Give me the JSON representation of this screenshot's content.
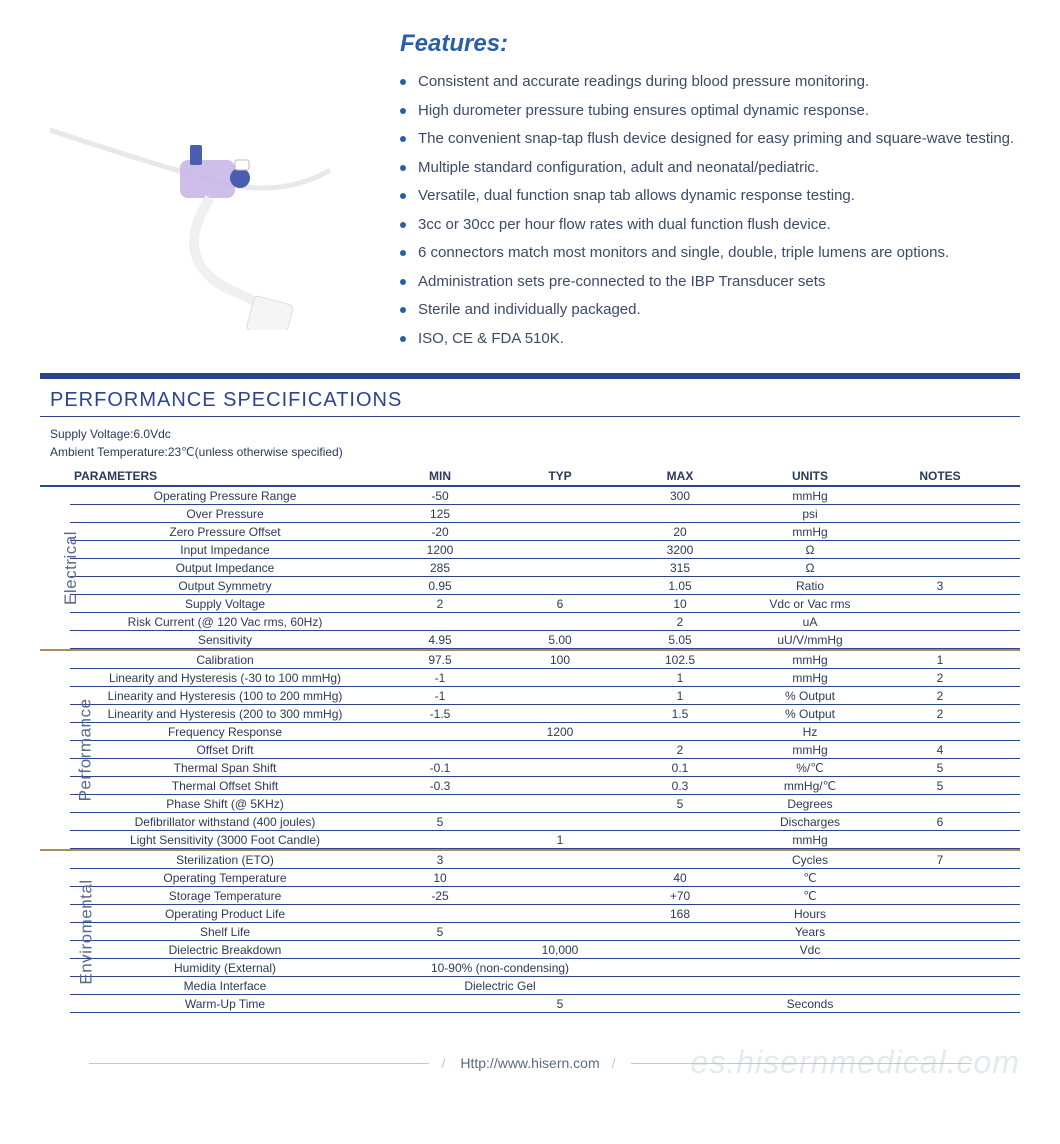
{
  "colors": {
    "accent": "#2a5ea8",
    "rule": "#2a448f",
    "section_divider": "#a98c5f",
    "text": "#2b3a5a",
    "muted": "#5a6a88",
    "watermark": "rgba(180,188,200,0.35)"
  },
  "features": {
    "title": "Features:",
    "items": [
      "Consistent and accurate readings during blood pressure monitoring.",
      "High durometer pressure tubing ensures optimal dynamic response.",
      "The convenient snap-tap flush device designed for easy priming and square-wave testing.",
      "Multiple standard configuration, adult and neonatal/pediatric.",
      "Versatile, dual function snap tab allows dynamic response testing.",
      "3cc or 30cc per hour flow rates with dual function flush device.",
      "6 connectors match most monitors and single, double, triple lumens are options.",
      "Administration sets pre-connected to the IBP Transducer sets",
      "Sterile and individually packaged.",
      "ISO, CE & FDA 510K."
    ]
  },
  "spec": {
    "title": "PERFORMANCE SPECIFICATIONS",
    "supply": "Supply Voltage:6.0Vdc",
    "ambient": "Ambient Temperature:23℃(unless otherwise specified)",
    "headers": [
      "PARAMETERS",
      "MIN",
      "TYP",
      "MAX",
      "UNITS",
      "NOTES"
    ],
    "sections": [
      {
        "label": "Electrical",
        "rows": [
          {
            "p": "Operating Pressure Range",
            "min": "-50",
            "typ": "",
            "max": "300",
            "units": "mmHg",
            "notes": ""
          },
          {
            "p": "Over  Pressure",
            "min": "125",
            "typ": "",
            "max": "",
            "units": "psi",
            "notes": ""
          },
          {
            "p": "Zero Pressure Offset",
            "min": "-20",
            "typ": "",
            "max": "20",
            "units": "mmHg",
            "notes": ""
          },
          {
            "p": "Input Impedance",
            "min": "1200",
            "typ": "",
            "max": "3200",
            "units": "Ω",
            "notes": ""
          },
          {
            "p": "Output Impedance",
            "min": "285",
            "typ": "",
            "max": "315",
            "units": "Ω",
            "notes": ""
          },
          {
            "p": "Output Symmetry",
            "min": "0.95",
            "typ": "",
            "max": "1.05",
            "units": "Ratio",
            "notes": "3"
          },
          {
            "p": "Supply Voltage",
            "min": "2",
            "typ": "6",
            "max": "10",
            "units": "Vdc or Vac rms",
            "notes": ""
          },
          {
            "p": "Risk Current (@ 120 Vac rms, 60Hz)",
            "min": "",
            "typ": "",
            "max": "2",
            "units": "uA",
            "notes": ""
          },
          {
            "p": "Sensitivity",
            "min": "4.95",
            "typ": "5.00",
            "max": "5.05",
            "units": "uU/V/mmHg",
            "notes": ""
          }
        ]
      },
      {
        "label": "Performance",
        "rows": [
          {
            "p": "Calibration",
            "min": "97.5",
            "typ": "100",
            "max": "102.5",
            "units": "mmHg",
            "notes": "1"
          },
          {
            "p": "Linearity and Hysteresis (-30 to 100 mmHg)",
            "min": "-1",
            "typ": "",
            "max": "1",
            "units": "mmHg",
            "notes": "2"
          },
          {
            "p": "Linearity and Hysteresis (100 to 200 mmHg)",
            "min": "-1",
            "typ": "",
            "max": "1",
            "units": "% Output",
            "notes": "2"
          },
          {
            "p": "Linearity and Hysteresis (200 to 300 mmHg)",
            "min": "-1.5",
            "typ": "",
            "max": "1.5",
            "units": "% Output",
            "notes": "2"
          },
          {
            "p": "Frequency Response",
            "min": "",
            "typ": "1200",
            "max": "",
            "units": "Hz",
            "notes": ""
          },
          {
            "p": "Offset Drift",
            "min": "",
            "typ": "",
            "max": "2",
            "units": "mmHg",
            "notes": "4"
          },
          {
            "p": "Thermal Span Shift",
            "min": "-0.1",
            "typ": "",
            "max": "0.1",
            "units": "%/℃",
            "notes": "5"
          },
          {
            "p": "Thermal Offset Shift",
            "min": "-0.3",
            "typ": "",
            "max": "0.3",
            "units": "mmHg/℃",
            "notes": "5"
          },
          {
            "p": "Phase Shift (@ 5KHz)",
            "min": "",
            "typ": "",
            "max": "5",
            "units": "Degrees",
            "notes": ""
          },
          {
            "p": "Defibrillator withstand (400 joules)",
            "min": "5",
            "typ": "",
            "max": "",
            "units": "Discharges",
            "notes": "6"
          },
          {
            "p": "Light Sensitivity (3000 Foot Candle)",
            "min": "",
            "typ": "1",
            "max": "",
            "units": "mmHg",
            "notes": ""
          }
        ]
      },
      {
        "label": "Enviromental",
        "rows": [
          {
            "p": "Sterilization (ETO)",
            "min": "3",
            "typ": "",
            "max": "",
            "units": "Cycles",
            "notes": "7"
          },
          {
            "p": "Operating Temperature",
            "min": "10",
            "typ": "",
            "max": "40",
            "units": "℃",
            "notes": ""
          },
          {
            "p": "Storage Temperature",
            "min": "-25",
            "typ": "",
            "max": "+70",
            "units": "℃",
            "notes": ""
          },
          {
            "p": "Operating Product Life",
            "min": "",
            "typ": "",
            "max": "168",
            "units": "Hours",
            "notes": ""
          },
          {
            "p": "Shelf Life",
            "min": "5",
            "typ": "",
            "max": "",
            "units": "Years",
            "notes": ""
          },
          {
            "p": "Dielectric Breakdown",
            "min": "",
            "typ": "10,000",
            "max": "",
            "units": "Vdc",
            "notes": ""
          },
          {
            "p": "Humidity (External)",
            "min": "10-90% (non-condensing)",
            "typ": "",
            "max": "",
            "units": "",
            "notes": "",
            "wide": true
          },
          {
            "p": "Media Interface",
            "min": "Dielectric Gel",
            "typ": "",
            "max": "",
            "units": "",
            "notes": "",
            "wide": true
          },
          {
            "p": "Warm-Up Time",
            "min": "",
            "typ": "5",
            "max": "",
            "units": "Seconds",
            "notes": ""
          }
        ]
      }
    ]
  },
  "footer": {
    "url": "Http://www.hisern.com"
  },
  "watermark": "es.hisernmedical.com"
}
